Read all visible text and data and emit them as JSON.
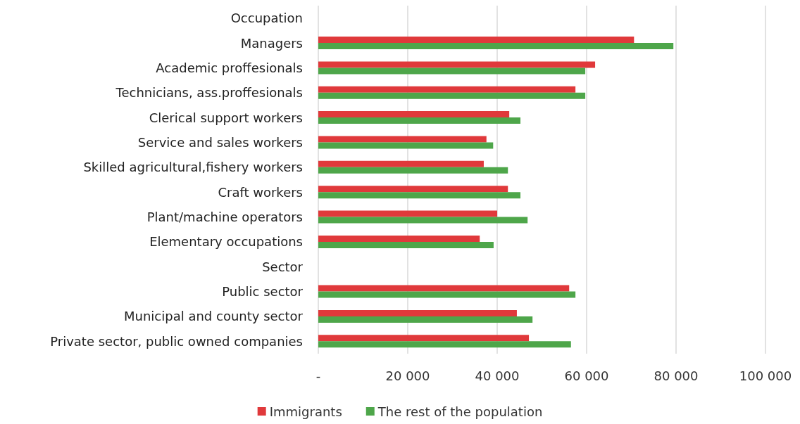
{
  "chart_data": {
    "type": "bar",
    "orientation": "horizontal",
    "categories": [
      "Occupation",
      "Managers",
      "Academic proffesionals",
      "Technicians, ass.proffesionals",
      "Clerical support workers",
      "Service and sales workers",
      "Skilled agricultural,fishery workers",
      "Craft workers",
      "Plant/machine operators",
      "Elementary occupations",
      "Sector",
      "Public sector",
      "Municipal and county sector",
      "Private sector, public owned companies"
    ],
    "series": [
      {
        "name": "Immigrants",
        "color": "#e0393b",
        "values": [
          null,
          70600,
          61900,
          57500,
          42700,
          37600,
          37000,
          42400,
          40000,
          36100,
          null,
          56100,
          44400,
          47100
        ]
      },
      {
        "name": "The rest of the population",
        "color": "#4ea64a",
        "values": [
          null,
          79400,
          59700,
          59700,
          45200,
          39100,
          42400,
          45200,
          46800,
          39200,
          null,
          57500,
          47900,
          56500
        ]
      }
    ],
    "xlim": [
      0,
      100000
    ],
    "xticks": [
      {
        "value": 0,
        "label": "-"
      },
      {
        "value": 20000,
        "label": "20 000"
      },
      {
        "value": 40000,
        "label": "40 000"
      },
      {
        "value": 60000,
        "label": "60 000"
      },
      {
        "value": 80000,
        "label": "80 000"
      },
      {
        "value": 100000,
        "label": "100 000"
      }
    ],
    "grid": "x",
    "legend": "bottom"
  }
}
